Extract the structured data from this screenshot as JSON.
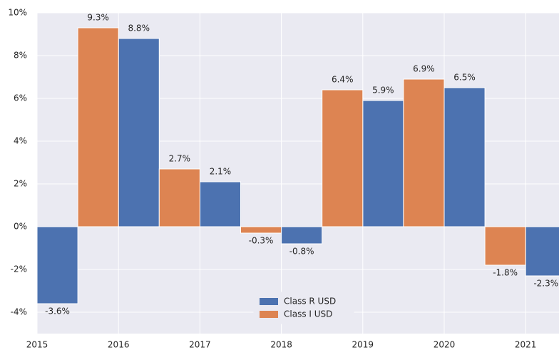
{
  "chart_data": {
    "type": "bar",
    "series": [
      {
        "name": "Class R USD",
        "color": "#4c72b0",
        "x": [
          2015,
          2016,
          2017,
          2018,
          2019,
          2020,
          2021
        ],
        "values": [
          -3.6,
          8.8,
          2.1,
          -0.8,
          5.9,
          6.5,
          -2.3
        ],
        "value_labels": [
          "-3.6%",
          "8.8%",
          "2.1%",
          "-0.8%",
          "5.9%",
          "6.5%",
          "-2.3%"
        ]
      },
      {
        "name": "Class I USD",
        "color": "#dd8452",
        "x": [
          2015.5,
          2016.5,
          2017.5,
          2018.5,
          2019.5,
          2020.5
        ],
        "values": [
          9.3,
          2.7,
          -0.3,
          6.4,
          6.9,
          -1.8
        ],
        "value_labels": [
          "9.3%",
          "2.7%",
          "-0.3%",
          "6.4%",
          "6.9%",
          "-1.8%"
        ]
      }
    ],
    "bar_width": 0.5,
    "xlim": [
      2015,
      2021.41
    ],
    "xticks": [
      2015,
      2016,
      2017,
      2018,
      2019,
      2020,
      2021
    ],
    "ylim": [
      -5,
      10
    ],
    "yticks": [
      {
        "value": -4,
        "label": "-4%"
      },
      {
        "value": -2,
        "label": "-2%"
      },
      {
        "value": 0,
        "label": "0%"
      },
      {
        "value": 2,
        "label": "2%"
      },
      {
        "value": 4,
        "label": "4%"
      },
      {
        "value": 6,
        "label": "6%"
      },
      {
        "value": 8,
        "label": "8%"
      },
      {
        "value": 10,
        "label": "10%"
      }
    ],
    "grid": true,
    "legend": "lower center"
  }
}
